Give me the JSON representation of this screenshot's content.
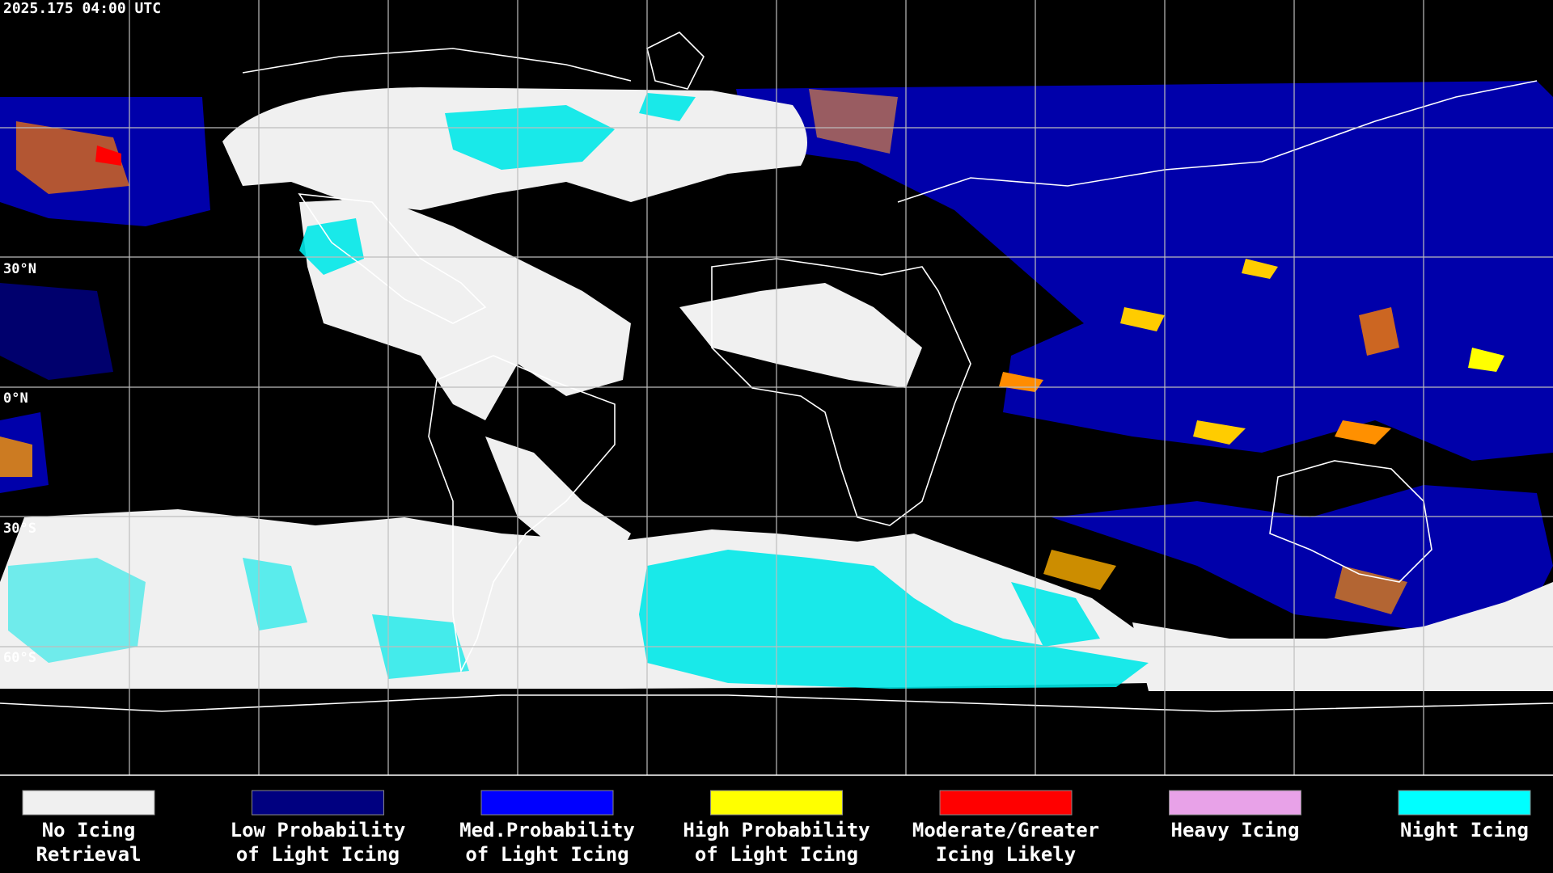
{
  "timestamp": "2025.175 04:00 UTC",
  "latitude_labels": [
    "30°N",
    "0°N",
    "30°S",
    "60°S"
  ],
  "legend": {
    "items": [
      {
        "label": [
          "No Icing",
          "Retrieval"
        ],
        "color": "#f0f0f0"
      },
      {
        "label": [
          "Low Probability",
          "of Light Icing"
        ],
        "color": "#000080"
      },
      {
        "label": [
          "Med.Probability",
          "of Light Icing"
        ],
        "color": "#0000ff"
      },
      {
        "label": [
          "High Probability",
          "of Light Icing"
        ],
        "color": "#ffff00"
      },
      {
        "label": [
          "Moderate/Greater",
          "Icing Likely"
        ],
        "color": "#ff0000"
      },
      {
        "label": [
          "Heavy Icing"
        ],
        "color": "#e8a2e8"
      },
      {
        "label": [
          "Night Icing"
        ],
        "color": "#00ffff"
      }
    ]
  }
}
